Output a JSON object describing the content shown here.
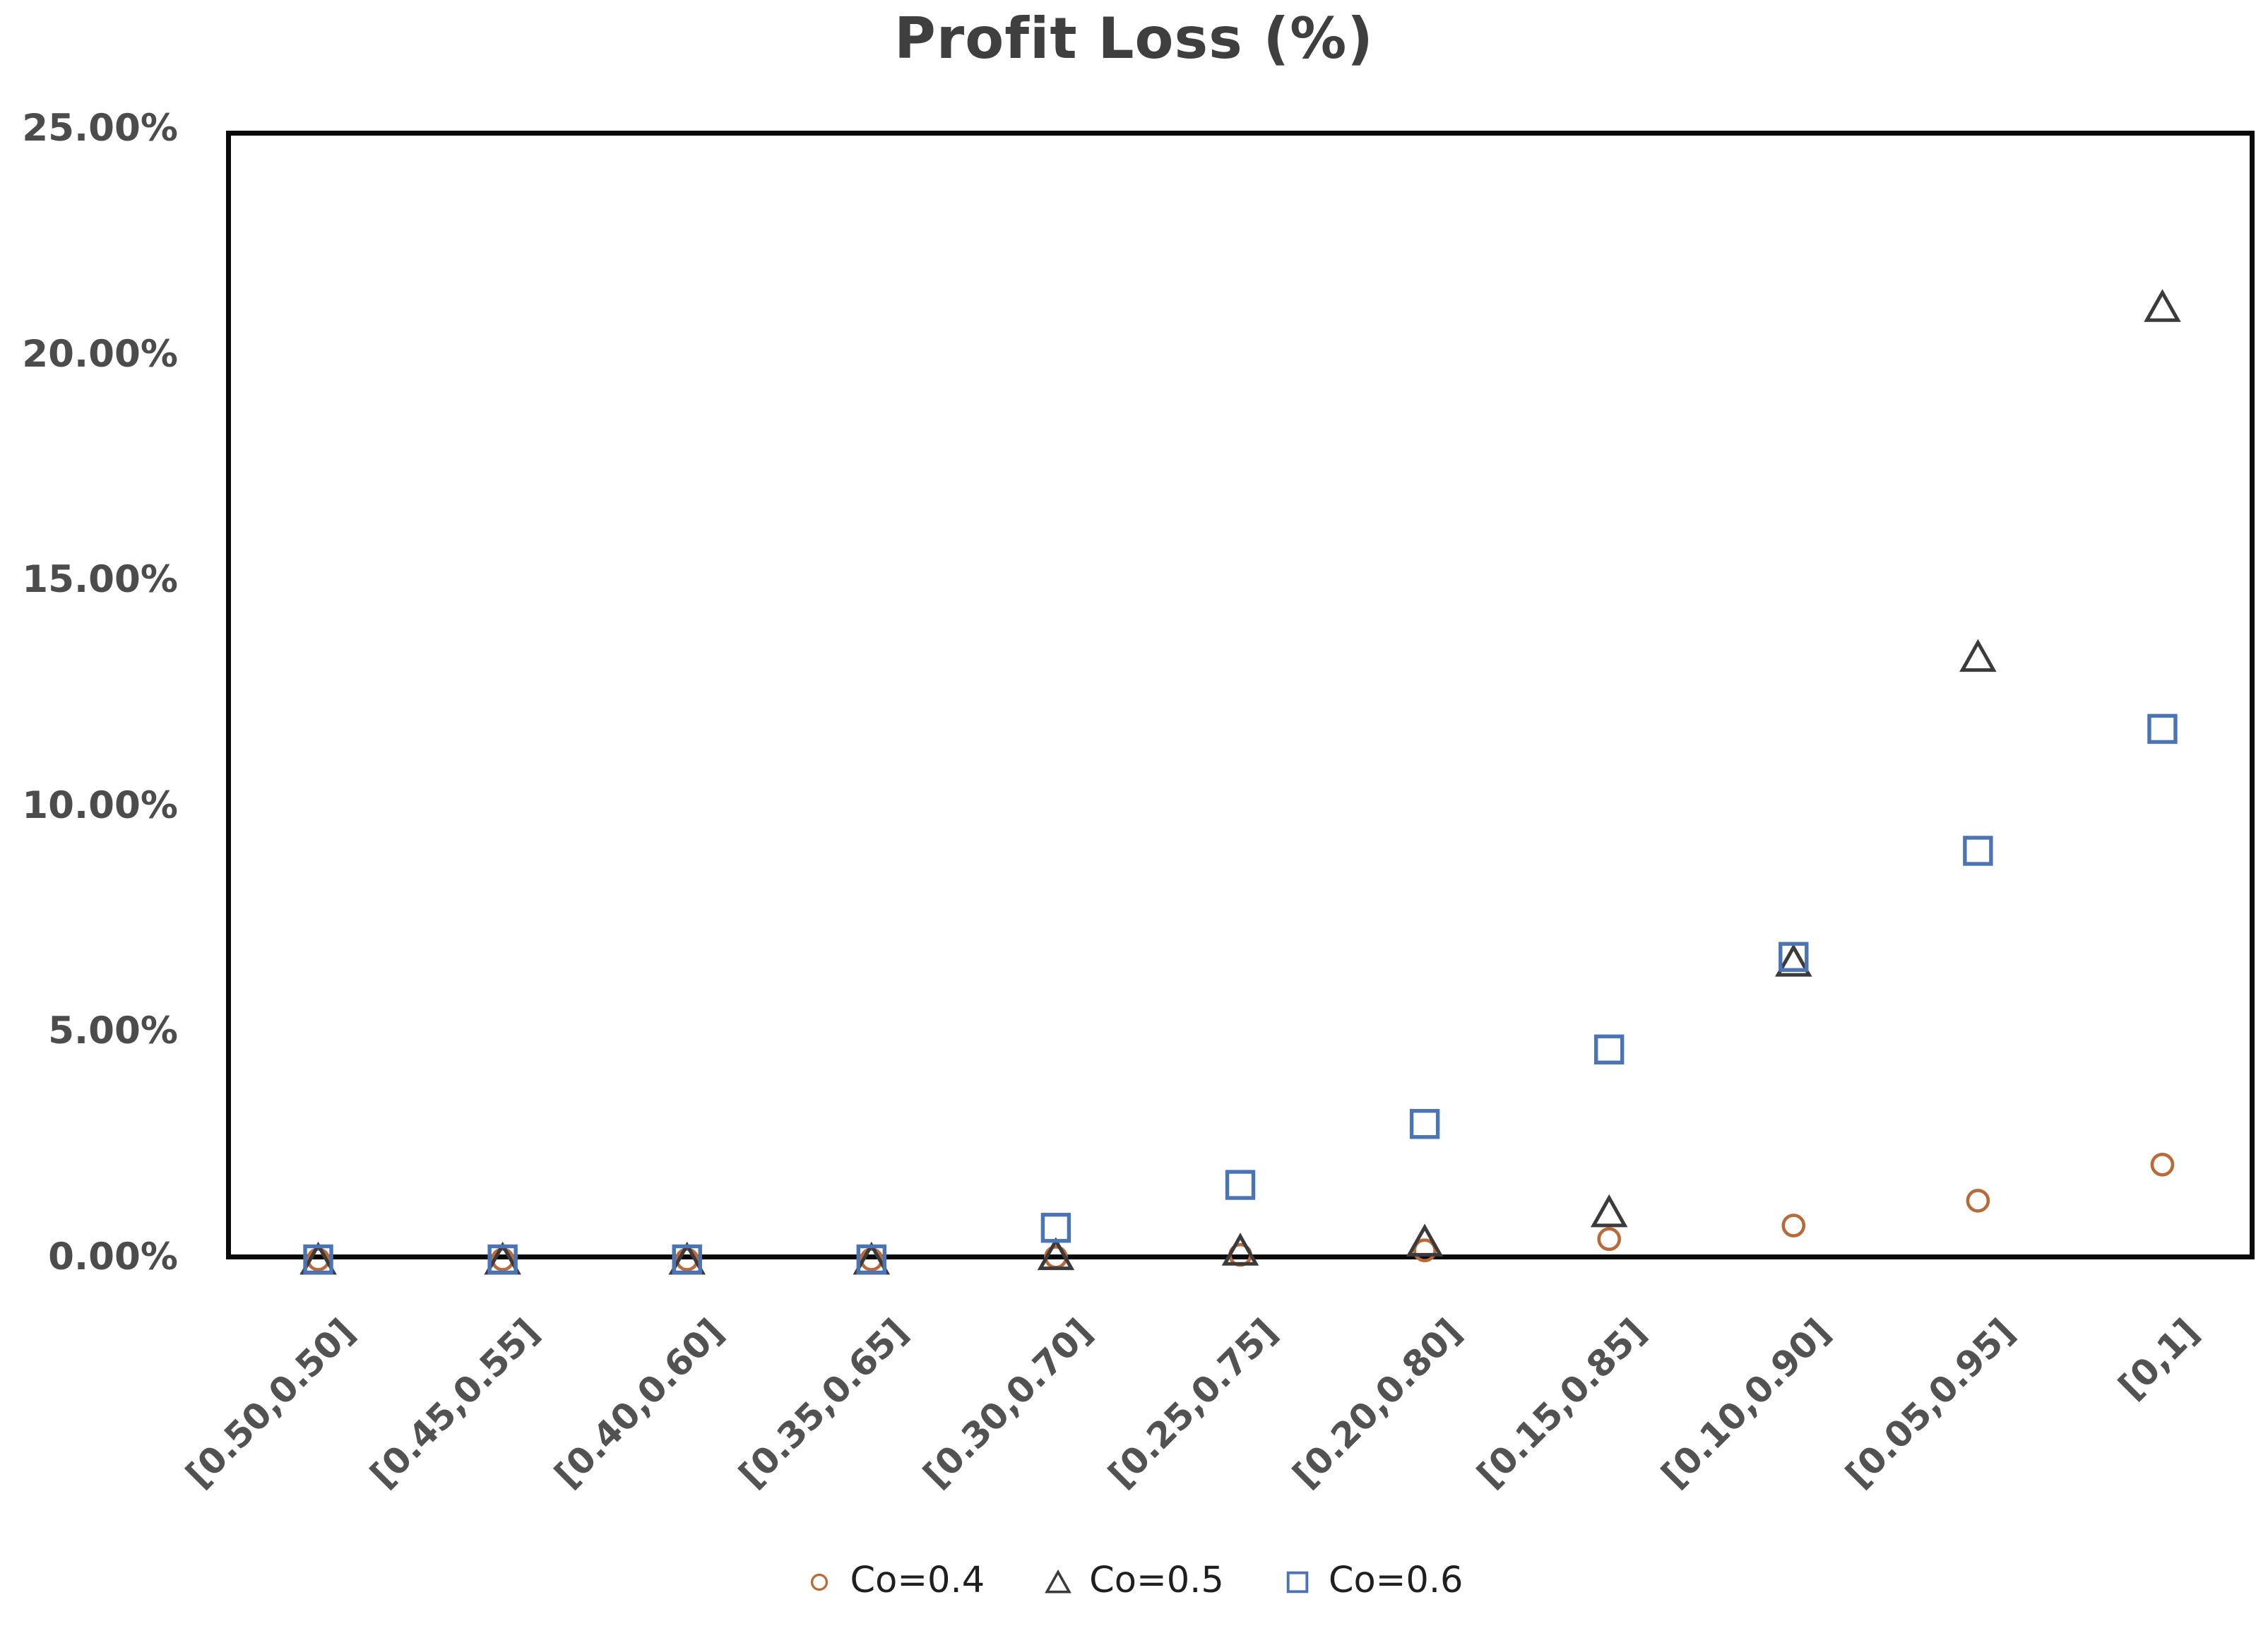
{
  "title": "Profit Loss (%)",
  "colors": {
    "background": "#ffffff",
    "axis_line": "#0a0a0a",
    "title_text": "#3f3f3f",
    "tick_text": "#4c4c4c",
    "legend_text": "#1f1f1f",
    "series_co04": "#ba6a38",
    "series_co05": "#3b3b3b",
    "series_co06": "#4b74b4"
  },
  "chart_data": {
    "type": "scatter",
    "title": "Profit Loss (%)",
    "xlabel": "",
    "ylabel": "",
    "grid": false,
    "legend_position": "bottom",
    "ylim": [
      0,
      25
    ],
    "categories": [
      "[0.50,0.50]",
      "[0.45,0.55]",
      "[0.40,0.60]",
      "[0.35,0.65]",
      "[0.30,0.70]",
      "[0.25,0.75]",
      "[0.20,0.80]",
      "[0.15,0.85]",
      "[0.10,0.90]",
      "[0.05,0.95]",
      "[0,1]"
    ],
    "yticks": [
      {
        "value": 0,
        "label": "0.00%"
      },
      {
        "value": 5,
        "label": "5.00%"
      },
      {
        "value": 10,
        "label": "10.00%"
      },
      {
        "value": 15,
        "label": "15.00%"
      },
      {
        "value": 20,
        "label": "20.00%"
      },
      {
        "value": 25,
        "label": "25.00%"
      }
    ],
    "series": [
      {
        "name": "Co=0.4",
        "marker": "circle",
        "color": "#ba6a38",
        "values": [
          0.0,
          0.0,
          0.0,
          0.0,
          0.05,
          0.1,
          0.2,
          0.45,
          0.75,
          1.3,
          2.1
        ]
      },
      {
        "name": "Co=0.5",
        "marker": "triangle",
        "color": "#3b3b3b",
        "values": [
          0.0,
          0.0,
          0.0,
          0.0,
          0.1,
          0.2,
          0.4,
          1.05,
          6.6,
          13.35,
          21.1
        ]
      },
      {
        "name": "Co=0.6",
        "marker": "square",
        "color": "#4b74b4",
        "values": [
          0.0,
          0.0,
          0.0,
          0.0,
          0.7,
          1.65,
          3.0,
          4.65,
          6.7,
          9.05,
          11.75
        ]
      }
    ]
  }
}
